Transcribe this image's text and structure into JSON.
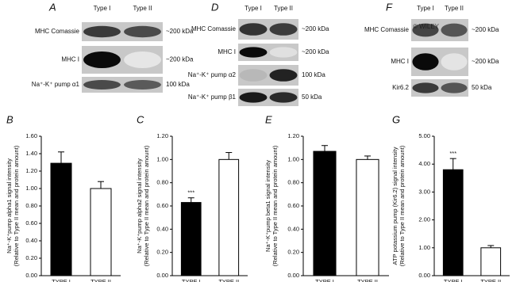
{
  "blots": [
    {
      "letter": "A",
      "lanes": [
        "Type I",
        "Type II"
      ],
      "rows": [
        {
          "label": "MHC Comassie",
          "size": "~200 kDa"
        },
        {
          "label": "MHC I",
          "size": "~200 kDa"
        },
        {
          "label": "Na⁺-K⁺ pump α1",
          "size": "100 kDa"
        }
      ]
    },
    {
      "letter": "D",
      "lanes": [
        "Type I",
        "Type II"
      ],
      "rows": [
        {
          "label": "MHC Comassie",
          "size": "~200 kDa"
        },
        {
          "label": "MHC I",
          "size": "~200 kDa"
        },
        {
          "label": "Na⁺-K⁺ pump α2",
          "size": "100 kDa"
        },
        {
          "label": "Na⁺-K⁺ pump β1",
          "size": "50 kDa"
        }
      ]
    },
    {
      "letter": "F",
      "lanes": [
        "Type I",
        "Type II"
      ],
      "rows": [
        {
          "label": "MHC Comassie",
          "size": "~200 kDa"
        },
        {
          "label": "MHC I",
          "size": "~200 kDa"
        },
        {
          "label": "Kir6.2",
          "size": "50 kDa"
        }
      ]
    }
  ],
  "watermark": "© WILEY",
  "chart_data": [
    {
      "type": "bar",
      "letter": "B",
      "ylabel": [
        "Na⁺-K⁺pump alpha1 signal intensity",
        "(Relative to Type II mean and protein amount)"
      ],
      "categories": [
        "TYPE I",
        "TYPE II"
      ],
      "values": [
        1.29,
        1.0
      ],
      "errors": [
        0.13,
        0.08
      ],
      "value_annotations": [
        null,
        null
      ],
      "colors": [
        "#000000",
        "#ffffff"
      ],
      "ylim": [
        0,
        1.6
      ],
      "yticks": [
        {
          "value": 0,
          "label": "0.00"
        },
        {
          "value": 0.2,
          "label": "0.20"
        },
        {
          "value": 0.4,
          "label": "0.40"
        },
        {
          "value": 0.6,
          "label": "0.60"
        },
        {
          "value": 0.8,
          "label": "0.80"
        },
        {
          "value": 1.0,
          "label": "1.00"
        },
        {
          "value": 1.2,
          "label": "1.20"
        },
        {
          "value": 1.4,
          "label": "1.40"
        },
        {
          "value": 1.6,
          "label": "1.60"
        }
      ]
    },
    {
      "type": "bar",
      "letter": "C",
      "ylabel": [
        "Na⁺-K⁺pump alpha2 signal intensity",
        "(Relative to Type II mean and protein amount)"
      ],
      "categories": [
        "TYPE I",
        "TYPE II"
      ],
      "values": [
        0.63,
        1.0
      ],
      "errors": [
        0.04,
        0.06
      ],
      "value_annotations": [
        "***",
        null
      ],
      "colors": [
        "#000000",
        "#ffffff"
      ],
      "ylim": [
        0,
        1.2
      ],
      "yticks": [
        {
          "value": 0,
          "label": "0.00"
        },
        {
          "value": 0.2,
          "label": "0.20"
        },
        {
          "value": 0.4,
          "label": "0.40"
        },
        {
          "value": 0.6,
          "label": "0.60"
        },
        {
          "value": 0.8,
          "label": "0.80"
        },
        {
          "value": 1.0,
          "label": "1.00"
        },
        {
          "value": 1.2,
          "label": "1.20"
        }
      ]
    },
    {
      "type": "bar",
      "letter": "E",
      "ylabel": [
        "Na⁺-K⁺pump beta1 signal intensity",
        "(Relative to Type II mean and protein amount)"
      ],
      "categories": [
        "TYPE I",
        "TYPE II"
      ],
      "values": [
        1.07,
        1.0
      ],
      "errors": [
        0.05,
        0.03
      ],
      "value_annotations": [
        null,
        null
      ],
      "colors": [
        "#000000",
        "#ffffff"
      ],
      "ylim": [
        0,
        1.2
      ],
      "yticks": [
        {
          "value": 0,
          "label": "0.00"
        },
        {
          "value": 0.2,
          "label": "0.20"
        },
        {
          "value": 0.4,
          "label": "0.40"
        },
        {
          "value": 0.6,
          "label": "0.60"
        },
        {
          "value": 0.8,
          "label": "0.80"
        },
        {
          "value": 1.0,
          "label": "1.00"
        },
        {
          "value": 1.2,
          "label": "1.20"
        }
      ]
    },
    {
      "type": "bar",
      "letter": "G",
      "ylabel": [
        "ATP potassium pump (Kir6.2) signal intensity",
        "(Relative to Type II mean and protein amount)"
      ],
      "categories": [
        "TYPE I",
        "TYPE II"
      ],
      "values": [
        3.8,
        1.0
      ],
      "errors": [
        0.4,
        0.08
      ],
      "value_annotations": [
        "***",
        null
      ],
      "colors": [
        "#000000",
        "#ffffff"
      ],
      "ylim": [
        0,
        5
      ],
      "yticks": [
        {
          "value": 0,
          "label": "0.00"
        },
        {
          "value": 1,
          "label": "1.00"
        },
        {
          "value": 2,
          "label": "2.00"
        },
        {
          "value": 3,
          "label": "3.00"
        },
        {
          "value": 4,
          "label": "4.00"
        },
        {
          "value": 5,
          "label": "5.00"
        }
      ]
    }
  ]
}
